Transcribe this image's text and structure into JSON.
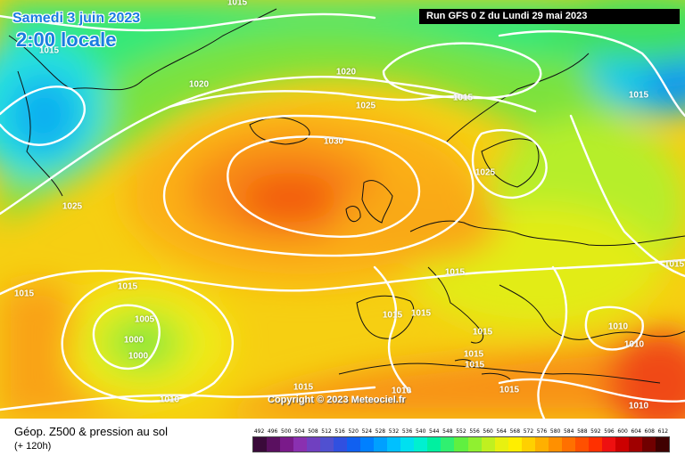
{
  "header": {
    "date": "Samedi 3 juin 2023",
    "local_time": "2:00 locale",
    "run_info": "Run GFS 0 Z du Lundi 29 mai 2023"
  },
  "copyright": "Copyright © 2023 Meteociel.fr",
  "legend": {
    "title": "Géop. Z500 & pression au sol",
    "subtitle": "(+ 120h)",
    "scale_values": [
      "492",
      "496",
      "500",
      "504",
      "508",
      "512",
      "516",
      "520",
      "524",
      "528",
      "532",
      "536",
      "540",
      "544",
      "548",
      "552",
      "556",
      "560",
      "564",
      "568",
      "572",
      "576",
      "580",
      "584",
      "588",
      "592",
      "596",
      "600",
      "604",
      "608",
      "612"
    ],
    "scale_colors": [
      "#3a0a3a",
      "#5a1060",
      "#7a1a8a",
      "#8a30b0",
      "#7040c0",
      "#5050d0",
      "#3050e0",
      "#1060f0",
      "#0080ff",
      "#00a0ff",
      "#00c0ff",
      "#00e0f0",
      "#00f0d0",
      "#00f0a0",
      "#30f070",
      "#60f040",
      "#90f030",
      "#c0f020",
      "#e8f010",
      "#ffee00",
      "#ffd000",
      "#ffb000",
      "#ff9000",
      "#ff7000",
      "#ff5000",
      "#ff3000",
      "#ee1010",
      "#cc0000",
      "#a00000",
      "#700000",
      "#400000"
    ]
  },
  "isobar_labels": [
    "1015",
    "1015",
    "1020",
    "1020",
    "1025",
    "1015",
    "1015",
    "1030",
    "1025",
    "1025",
    "1015",
    "1015",
    "1015",
    "1015",
    "1005",
    "1000",
    "1000",
    "1015",
    "1015",
    "1010",
    "1010",
    "1015",
    "1015",
    "1010",
    "1010",
    "1010",
    "1015",
    "1015",
    "1015"
  ]
}
